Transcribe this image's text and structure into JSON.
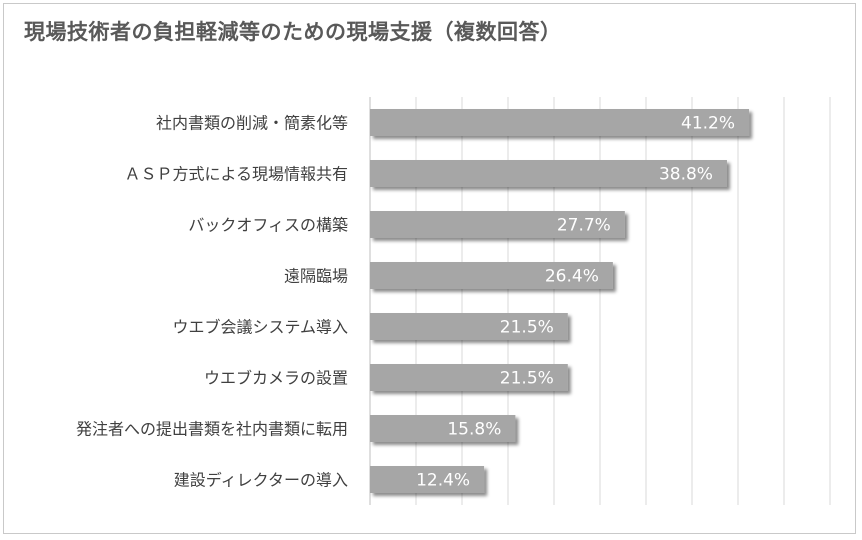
{
  "chart_data": {
    "type": "bar",
    "orientation": "horizontal",
    "title": "現場技術者の負担軽減等のための現場支援（複数回答）",
    "categories": [
      "社内書類の削減・簡素化等",
      "ＡＳＰ方式による現場情報共有",
      "バックオフィスの構築",
      "遠隔臨場",
      "ウエブ会議システム導入",
      "ウエブカメラの設置",
      "発注者への提出書類を社内書類に転用",
      "建設ディレクターの導入"
    ],
    "values": [
      41.2,
      38.8,
      27.7,
      26.4,
      21.5,
      21.5,
      15.8,
      12.4
    ],
    "value_labels": [
      "41.2%",
      "38.8%",
      "27.7%",
      "26.4%",
      "21.5%",
      "21.5%",
      "15.8%",
      "12.4%"
    ],
    "xlim": [
      0,
      50
    ],
    "grid": true,
    "legend": "none",
    "colors": {
      "bar": "#a6a6a6",
      "grid": "#d9d9d9",
      "label_text": "#404040",
      "value_text": "#ffffff",
      "title": "#595959"
    }
  }
}
